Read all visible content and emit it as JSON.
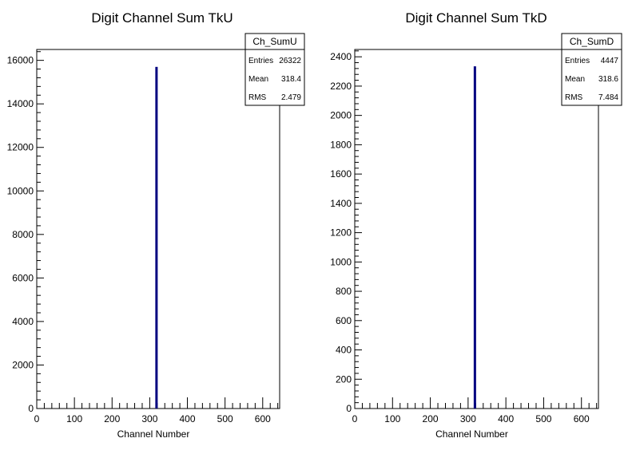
{
  "chart_data": [
    {
      "type": "bar",
      "title": "Digit Channel Sum TkU",
      "xlabel": "Channel Number",
      "ylabel": "",
      "xlim": [
        0,
        645
      ],
      "ylim": [
        0,
        16500
      ],
      "x_ticks": [
        0,
        100,
        200,
        300,
        400,
        500,
        600
      ],
      "y_ticks": [
        0,
        2000,
        4000,
        6000,
        8000,
        10000,
        12000,
        14000,
        16000
      ],
      "series": [
        {
          "x": [
            318
          ],
          "values": [
            15700
          ],
          "color": "#000080"
        }
      ],
      "stats": {
        "name": "Ch_SumU",
        "rows": [
          {
            "label": "Entries",
            "value": "26322"
          },
          {
            "label": "Mean",
            "value": "318.4"
          },
          {
            "label": "RMS",
            "value": "2.479"
          }
        ]
      },
      "grid": false,
      "legend": "top-right"
    },
    {
      "type": "bar",
      "title": "Digit Channel Sum TkD",
      "xlabel": "Channel Number",
      "ylabel": "",
      "xlim": [
        0,
        645
      ],
      "ylim": [
        0,
        2450
      ],
      "x_ticks": [
        0,
        100,
        200,
        300,
        400,
        500,
        600
      ],
      "y_ticks": [
        0,
        200,
        400,
        600,
        800,
        1000,
        1200,
        1400,
        1600,
        1800,
        2000,
        2200,
        2400
      ],
      "series": [
        {
          "x": [
            318
          ],
          "values": [
            2335
          ],
          "color": "#000080"
        }
      ],
      "stats": {
        "name": "Ch_SumD",
        "rows": [
          {
            "label": "Entries",
            "value": "4447"
          },
          {
            "label": "Mean",
            "value": "318.6"
          },
          {
            "label": "RMS",
            "value": "7.484"
          }
        ]
      },
      "grid": false,
      "legend": "top-right"
    }
  ]
}
